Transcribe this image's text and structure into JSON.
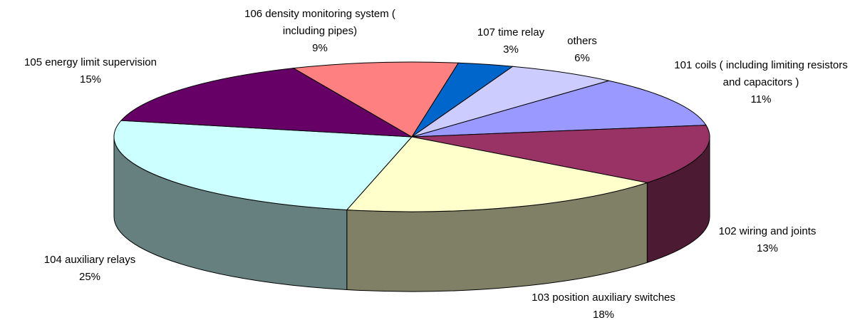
{
  "chart_data": {
    "type": "pie3d",
    "categories": [
      "101 coils ( including limiting resistors and capacitors )",
      "102 wiring and joints",
      "103 position auxiliary switches",
      "104 auxiliary relays",
      "105 energy limit supervision",
      "106 density monitoring system ( including pipes)",
      "107 time relay",
      "others"
    ],
    "values": [
      11,
      13,
      18,
      25,
      15,
      9,
      3,
      6
    ],
    "value_labels": [
      "11%",
      "13%",
      "18%",
      "25%",
      "15%",
      "9%",
      "3%",
      "6%"
    ],
    "colors": [
      "#9999ff",
      "#993366",
      "#ffffcc",
      "#ccffff",
      "#660066",
      "#ff8080",
      "#0066cc",
      "#ccccff"
    ]
  }
}
